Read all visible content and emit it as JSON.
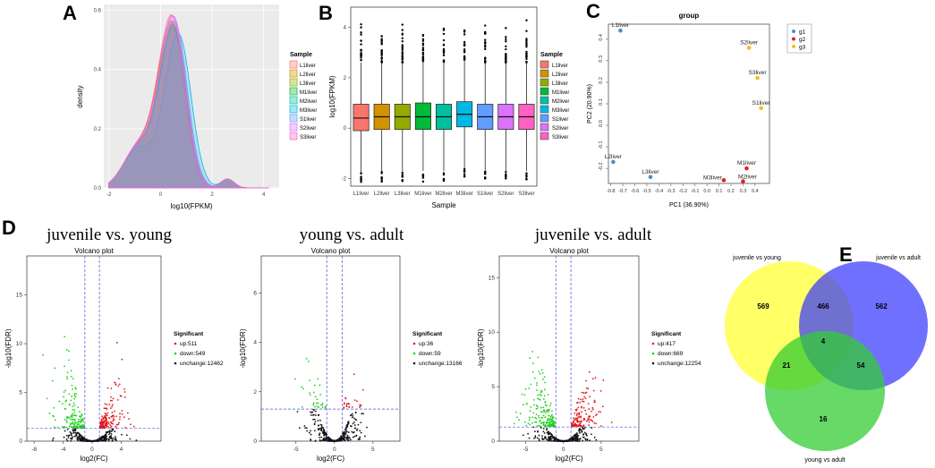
{
  "panel_labels": {
    "a": "A",
    "b": "B",
    "c": "C",
    "d": "D",
    "e": "E"
  },
  "colors": {
    "samples": [
      "#f8766d",
      "#d39200",
      "#93aa00",
      "#00ba38",
      "#00c19f",
      "#00b9e3",
      "#619cff",
      "#db72fb",
      "#ff61c3"
    ],
    "up": "#e41a1c",
    "down": "#22d01e",
    "unchange": "#111111",
    "g1": "#4a90c4",
    "g2": "#e0202a",
    "g3": "#f0c020",
    "venn_a": "#ffff33",
    "venn_b": "#3333ff",
    "venn_c": "#33cc33"
  },
  "chart_data": [
    {
      "type": "area",
      "panel": "A",
      "title": "",
      "xlabel": "log10(FPKM)",
      "ylabel": "density",
      "xlim": [
        -2.2,
        4.6
      ],
      "ylim": [
        0,
        0.62
      ],
      "xticks": [
        "-2",
        "0",
        "2",
        "4"
      ],
      "yticks": [
        "0.0",
        "0.2",
        "0.4",
        "0.6"
      ],
      "legend_title": "Sample",
      "series": [
        {
          "name": "L1liver",
          "peak_x": 0.45,
          "peak_y": 0.55
        },
        {
          "name": "L2liver",
          "peak_x": 0.45,
          "peak_y": 0.56
        },
        {
          "name": "L3liver",
          "peak_x": 0.5,
          "peak_y": 0.55
        },
        {
          "name": "M1liver",
          "peak_x": 0.5,
          "peak_y": 0.54
        },
        {
          "name": "M2liver",
          "peak_x": 0.5,
          "peak_y": 0.55
        },
        {
          "name": "M3liver",
          "peak_x": 0.7,
          "peak_y": 0.52
        },
        {
          "name": "S1liver",
          "peak_x": 0.55,
          "peak_y": 0.56
        },
        {
          "name": "S2liver",
          "peak_x": 0.5,
          "peak_y": 0.58
        },
        {
          "name": "S3liver",
          "peak_x": 0.45,
          "peak_y": 0.58
        }
      ]
    },
    {
      "type": "box",
      "panel": "B",
      "xlabel": "Sample",
      "ylabel": "log10(FPKM)",
      "ylim": [
        -2.3,
        4.8
      ],
      "yticks": [
        "-2",
        "0",
        "2",
        "4"
      ],
      "legend_title": "Sample",
      "categories": [
        "L1liver",
        "L2liver",
        "L3liver",
        "M1liver",
        "M2liver",
        "M3liver",
        "S1liver",
        "S2liver",
        "S3liver"
      ],
      "boxes": [
        {
          "q1": -0.1,
          "median": 0.4,
          "q3": 0.95,
          "wlo": -1.75,
          "whi": 2.6
        },
        {
          "q1": -0.05,
          "median": 0.45,
          "q3": 0.95,
          "wlo": -1.7,
          "whi": 2.6
        },
        {
          "q1": -0.05,
          "median": 0.45,
          "q3": 0.95,
          "wlo": -1.7,
          "whi": 2.6
        },
        {
          "q1": -0.05,
          "median": 0.45,
          "q3": 1.0,
          "wlo": -1.7,
          "whi": 2.65
        },
        {
          "q1": -0.05,
          "median": 0.45,
          "q3": 0.95,
          "wlo": -1.7,
          "whi": 2.6
        },
        {
          "q1": 0.05,
          "median": 0.55,
          "q3": 1.05,
          "wlo": -1.6,
          "whi": 2.7
        },
        {
          "q1": -0.05,
          "median": 0.45,
          "q3": 0.95,
          "wlo": -1.7,
          "whi": 2.6
        },
        {
          "q1": -0.05,
          "median": 0.45,
          "q3": 0.95,
          "wlo": -1.7,
          "whi": 2.6
        },
        {
          "q1": -0.05,
          "median": 0.45,
          "q3": 0.95,
          "wlo": -1.7,
          "whi": 2.6
        }
      ]
    },
    {
      "type": "scatter",
      "panel": "C",
      "title": "group",
      "xlabel": "PC1 (36.90%)",
      "ylabel": "PC2 (20.90%)",
      "xlim": [
        -0.82,
        0.52
      ],
      "ylim": [
        -0.27,
        0.47
      ],
      "xticks": [
        "-0.8",
        "-0.7",
        "-0.6",
        "-0.5",
        "-0.4",
        "-0.3",
        "-0.2",
        "-0.1",
        "0.0",
        "0.1",
        "0.2",
        "0.3",
        "0.4"
      ],
      "yticks": [
        "-0.2",
        "-0.1",
        "0.0",
        "0.1",
        "0.2",
        "0.3",
        "0.4"
      ],
      "legend": [
        "g1",
        "g2",
        "g3"
      ],
      "points": [
        {
          "label": "L1liver",
          "x": -0.72,
          "y": 0.44,
          "group": "g1"
        },
        {
          "label": "L2liver",
          "x": -0.78,
          "y": -0.17,
          "group": "g1"
        },
        {
          "label": "L3liver",
          "x": -0.47,
          "y": -0.24,
          "group": "g1"
        },
        {
          "label": "M1liver",
          "x": 0.33,
          "y": -0.2,
          "group": "g2"
        },
        {
          "label": "M2liver",
          "x": 0.3,
          "y": -0.26,
          "group": "g2"
        },
        {
          "label": "M3liver",
          "x": 0.14,
          "y": -0.255,
          "group": "g2"
        },
        {
          "label": "S1liver",
          "x": 0.45,
          "y": 0.08,
          "group": "g3"
        },
        {
          "label": "S2liver",
          "x": 0.35,
          "y": 0.36,
          "group": "g3"
        },
        {
          "label": "S3liver",
          "x": 0.42,
          "y": 0.22,
          "group": "g3"
        }
      ]
    },
    {
      "type": "scatter",
      "panel": "D1",
      "heading": "juvenile vs. young",
      "title": "Volcano plot",
      "xlabel": "log2(FC)",
      "ylabel": "-log10(FDR)",
      "xlim": [
        -9,
        9.5
      ],
      "ylim": [
        0,
        19
      ],
      "xticks": [
        "-8",
        "-4",
        "0",
        "4"
      ],
      "yticks": [
        "0",
        "5",
        "10",
        "15"
      ],
      "vlines": [
        -1,
        1
      ],
      "hline": 1.3,
      "legend_title": "Significant",
      "legend": [
        "up:511",
        "down:549",
        "unchange:12462"
      ]
    },
    {
      "type": "scatter",
      "panel": "D2",
      "heading": "young vs. adult",
      "title": "Volcano plot",
      "xlabel": "log2(FC)",
      "ylabel": "-log10(FDR)",
      "xlim": [
        -9.5,
        8.5
      ],
      "ylim": [
        0,
        7.5
      ],
      "xticks": [
        "-5",
        "0",
        "5"
      ],
      "yticks": [
        "0",
        "2",
        "4",
        "6"
      ],
      "vlines": [
        -1,
        1
      ],
      "hline": 1.3,
      "legend_title": "Significant",
      "legend": [
        "up:36",
        "down:59",
        "unchange:13166"
      ]
    },
    {
      "type": "scatter",
      "panel": "D3",
      "heading": "juvenile vs. adult",
      "title": "Volcano plot",
      "xlabel": "log2(FC)",
      "ylabel": "-log10(FDR)",
      "xlim": [
        -8.5,
        10
      ],
      "ylim": [
        0,
        17
      ],
      "xticks": [
        "-5",
        "0",
        "5"
      ],
      "yticks": [
        "0",
        "5",
        "10",
        "15"
      ],
      "vlines": [
        -1,
        1
      ],
      "hline": 1.3,
      "legend_title": "Significant",
      "legend": [
        "up:417",
        "down:669",
        "unchange:12254"
      ]
    },
    {
      "type": "venn",
      "panel": "E",
      "sets": [
        "juvenile vs young",
        "juvenile vs adult",
        "young vs adult"
      ],
      "regions": {
        "a_only": "569",
        "b_only": "562",
        "c_only": "16",
        "ab": "466",
        "ac": "21",
        "bc": "54",
        "abc": "4"
      }
    }
  ]
}
